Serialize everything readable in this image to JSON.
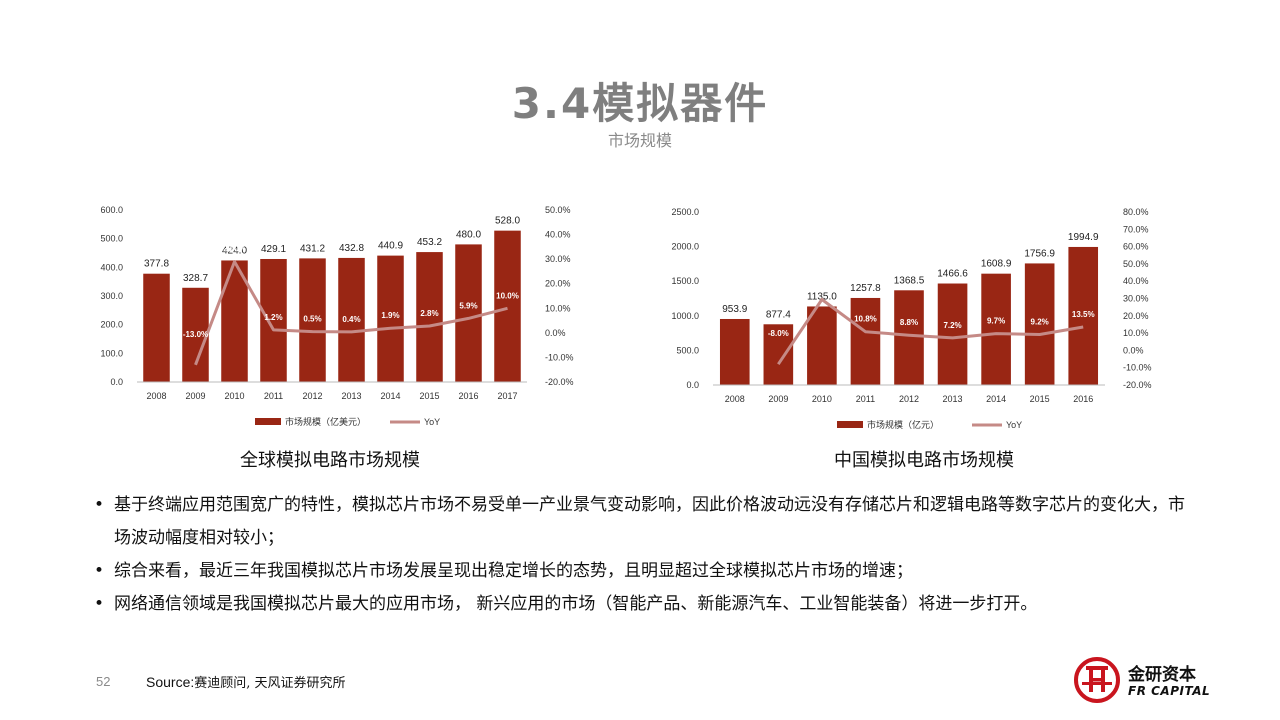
{
  "header": {
    "title": "3.4模拟器件",
    "subtitle": "市场规模"
  },
  "colors": {
    "bar": "#992614",
    "line": "#c58a86",
    "title": "#7f7f7f",
    "logo_red": "#c9151e"
  },
  "chart_data": [
    {
      "type": "bar",
      "categories": [
        "2008",
        "2009",
        "2010",
        "2011",
        "2012",
        "2013",
        "2014",
        "2015",
        "2016",
        "2017"
      ],
      "series": [
        {
          "name": "市场规模（亿美元）",
          "type": "bar",
          "axis": "left",
          "values": [
            377.8,
            328.7,
            424.0,
            429.1,
            431.2,
            432.8,
            440.9,
            453.2,
            480.0,
            528.0
          ],
          "labels": [
            "377.8",
            "328.7",
            "424.0",
            "429.1",
            "431.2",
            "432.8",
            "440.9",
            "453.2",
            "480.0",
            "528.0"
          ]
        },
        {
          "name": "YoY",
          "type": "line",
          "axis": "right",
          "values": [
            null,
            -13.0,
            29.0,
            1.2,
            0.5,
            0.4,
            1.9,
            2.8,
            5.9,
            10.0
          ],
          "labels": [
            "",
            "-13.0%",
            "29.0%",
            "1.2%",
            "0.5%",
            "0.4%",
            "1.9%",
            "2.8%",
            "5.9%",
            "10.0%"
          ]
        }
      ],
      "ylim": [
        0,
        600
      ],
      "y_ticks": [
        "0.0",
        "100.0",
        "200.0",
        "300.0",
        "400.0",
        "500.0",
        "600.0"
      ],
      "y2lim": [
        -20,
        50
      ],
      "y2_ticks": [
        "-20.0%",
        "-10.0%",
        "0.0%",
        "10.0%",
        "20.0%",
        "30.0%",
        "40.0%",
        "50.0%"
      ],
      "legend": "bottom",
      "caption": "全球模拟电路市场规模"
    },
    {
      "type": "bar",
      "categories": [
        "2008",
        "2009",
        "2010",
        "2011",
        "2012",
        "2013",
        "2014",
        "2015",
        "2016"
      ],
      "series": [
        {
          "name": "市场规模（亿元）",
          "type": "bar",
          "axis": "left",
          "values": [
            953.9,
            877.4,
            1135.0,
            1257.8,
            1368.5,
            1466.6,
            1608.9,
            1756.9,
            1994.9
          ],
          "labels": [
            "953.9",
            "877.4",
            "1135.0",
            "1257.8",
            "1368.5",
            "1466.6",
            "1608.9",
            "1756.9",
            "1994.9"
          ]
        },
        {
          "name": "YoY",
          "type": "line",
          "axis": "right",
          "values": [
            null,
            -8.0,
            29.4,
            10.8,
            8.8,
            7.2,
            9.7,
            9.2,
            13.5
          ],
          "labels": [
            "",
            "-8.0%",
            "29.4%",
            "10.8%",
            "8.8%",
            "7.2%",
            "9.7%",
            "9.2%",
            "13.5%"
          ]
        }
      ],
      "ylim": [
        0,
        2500
      ],
      "y_ticks": [
        "0.0",
        "500.0",
        "1000.0",
        "1500.0",
        "2000.0",
        "2500.0"
      ],
      "y2lim": [
        -20,
        80
      ],
      "y2_ticks": [
        "-20.0%",
        "-10.0%",
        "0.0%",
        "10.0%",
        "20.0%",
        "30.0%",
        "40.0%",
        "50.0%",
        "60.0%",
        "70.0%",
        "80.0%"
      ],
      "legend": "bottom",
      "caption": "中国模拟电路市场规模"
    }
  ],
  "bullets": [
    "基于终端应用范围宽广的特性，模拟芯片市场不易受单一产业景气变动影响，因此价格波动远没有存储芯片和逻辑电路等数字芯片的变化大，市场波动幅度相对较小；",
    "综合来看，最近三年我国模拟芯片市场发展呈现出稳定增长的态势，且明显超过全球模拟芯片市场的增速；",
    "网络通信领域是我国模拟芯片最大的应用市场， 新兴应用的市场（智能产品、新能源汽车、工业智能装备）将进一步打开。"
  ],
  "bullet_symbol": "•",
  "footer": {
    "page_number": "52",
    "source_label": "Source:",
    "source_value": "赛迪顾问, 天风证券研究所"
  },
  "logo": {
    "name_cn": "金研资本",
    "name_en": "FR CAPITAL"
  }
}
